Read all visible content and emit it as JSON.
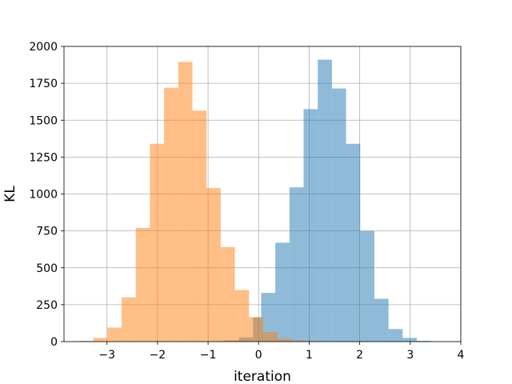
{
  "chart_data": {
    "type": "bar",
    "xlabel": "iteration",
    "ylabel": "KL",
    "xlim": [
      -3.85,
      4.0
    ],
    "ylim": [
      0,
      2000
    ],
    "xticks": [
      -3,
      -2,
      -1,
      0,
      1,
      2,
      3,
      4
    ],
    "xtick_labels": [
      "−3",
      "−2",
      "−1",
      "0",
      "1",
      "2",
      "3",
      "4"
    ],
    "yticks": [
      0,
      250,
      500,
      750,
      1000,
      1250,
      1500,
      1750,
      2000
    ],
    "ytick_labels": [
      "0",
      "250",
      "500",
      "750",
      "1000",
      "1250",
      "1500",
      "1750",
      "2000"
    ],
    "grid": true,
    "series": [
      {
        "color": "#1f77b4",
        "alpha": 0.5,
        "bin_edges": [
          -0.95,
          -0.67,
          -0.39,
          -0.11,
          0.05,
          0.33,
          0.61,
          0.89,
          1.17,
          1.45,
          1.73,
          2.01,
          2.29,
          2.57,
          2.85,
          3.13,
          3.41
        ],
        "counts": [
          2,
          8,
          28,
          165,
          330,
          670,
          1045,
          1575,
          1910,
          1715,
          1340,
          750,
          290,
          85,
          25,
          5
        ]
      },
      {
        "color": "#ff7f0e",
        "alpha": 0.5,
        "bin_edges": [
          -3.55,
          -3.27,
          -2.99,
          -2.71,
          -2.43,
          -2.15,
          -1.87,
          -1.59,
          -1.31,
          -1.03,
          -0.75,
          -0.47,
          -0.19,
          0.09,
          0.37,
          0.65,
          0.93,
          1.21,
          1.49,
          1.77,
          2.05
        ],
        "counts": [
          5,
          25,
          95,
          300,
          770,
          1340,
          1720,
          1895,
          1565,
          1040,
          640,
          350,
          165,
          65,
          20,
          8,
          4,
          2,
          1,
          1
        ]
      }
    ]
  }
}
